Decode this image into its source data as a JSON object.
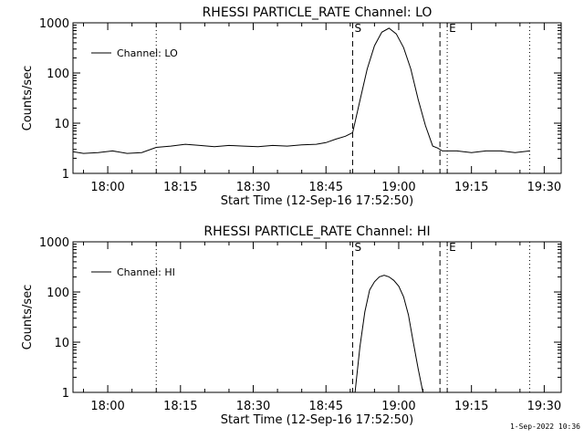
{
  "footer": {
    "timestamp": "1-Sep-2022 10:36"
  },
  "chart_data": [
    {
      "type": "line",
      "title": "RHESSI PARTICLE_RATE Channel: LO",
      "xlabel": "Start Time (12-Sep-16 17:52:50)",
      "ylabel": "Counts/sec",
      "yscale": "log",
      "ylim": [
        1,
        1000
      ],
      "xlim": [
        "17:52:50",
        "19:33:30"
      ],
      "xticks": [
        "18:00",
        "18:15",
        "18:30",
        "18:45",
        "19:00",
        "19:15",
        "19:30"
      ],
      "yticks": [
        "1",
        "10",
        "100",
        "1000"
      ],
      "legend": {
        "placement": "top-left",
        "entries": [
          "Channel: LO"
        ]
      },
      "markers": [
        {
          "label": "",
          "time": "18:10:00",
          "style": "dotted"
        },
        {
          "label": "S",
          "time": "18:50:30",
          "style": "dashed"
        },
        {
          "label": "",
          "time": "19:08:30",
          "style": "dashed"
        },
        {
          "label": "E",
          "time": "19:10:00",
          "style": "dotted"
        },
        {
          "label": "",
          "time": "19:27:00",
          "style": "dotted"
        }
      ],
      "series": [
        {
          "name": "Channel: LO",
          "x": [
            "17:52:50",
            "17:55:00",
            "17:58:00",
            "18:01:00",
            "18:04:00",
            "18:07:00",
            "18:10:00",
            "18:13:00",
            "18:16:00",
            "18:19:00",
            "18:22:00",
            "18:25:00",
            "18:28:00",
            "18:31:00",
            "18:34:00",
            "18:37:00",
            "18:40:00",
            "18:43:00",
            "18:45:00",
            "18:47:00",
            "18:49:00",
            "18:50:30",
            "18:52:00",
            "18:53:30",
            "18:55:00",
            "18:56:30",
            "18:58:00",
            "18:59:30",
            "19:01:00",
            "19:02:30",
            "19:04:00",
            "19:05:30",
            "19:07:00",
            "19:08:00",
            "19:09:00",
            "19:12:00",
            "19:15:00",
            "19:18:00",
            "19:21:00",
            "19:24:00",
            "19:27:00"
          ],
          "values": [
            2.7,
            2.5,
            2.6,
            2.8,
            2.5,
            2.6,
            3.3,
            3.5,
            3.8,
            3.6,
            3.4,
            3.6,
            3.5,
            3.4,
            3.6,
            3.5,
            3.7,
            3.8,
            4.1,
            4.8,
            5.5,
            6.5,
            28,
            120,
            350,
            650,
            780,
            600,
            320,
            120,
            30,
            9,
            3.5,
            3.2,
            2.8,
            2.8,
            2.6,
            2.8,
            2.8,
            2.6,
            2.8
          ]
        }
      ]
    },
    {
      "type": "line",
      "title": "RHESSI PARTICLE_RATE Channel: HI",
      "xlabel": "Start Time (12-Sep-16 17:52:50)",
      "ylabel": "Counts/sec",
      "yscale": "log",
      "ylim": [
        1,
        1000
      ],
      "xlim": [
        "17:52:50",
        "19:33:30"
      ],
      "xticks": [
        "18:00",
        "18:15",
        "18:30",
        "18:45",
        "19:00",
        "19:15",
        "19:30"
      ],
      "yticks": [
        "1",
        "10",
        "100",
        "1000"
      ],
      "legend": {
        "placement": "top-left",
        "entries": [
          "Channel: HI"
        ]
      },
      "markers": [
        {
          "label": "",
          "time": "18:10:00",
          "style": "dotted"
        },
        {
          "label": "S",
          "time": "18:50:30",
          "style": "dashed"
        },
        {
          "label": "",
          "time": "19:08:30",
          "style": "dashed"
        },
        {
          "label": "E",
          "time": "19:10:00",
          "style": "dotted"
        },
        {
          "label": "",
          "time": "19:27:00",
          "style": "dotted"
        }
      ],
      "series": [
        {
          "name": "Channel: HI",
          "x": [
            "18:51:00",
            "18:52:00",
            "18:53:00",
            "18:54:00",
            "18:55:00",
            "18:56:00",
            "18:57:00",
            "18:58:00",
            "18:59:00",
            "19:00:00",
            "19:01:00",
            "19:02:00",
            "19:03:00",
            "19:04:00",
            "19:05:00"
          ],
          "values": [
            1.0,
            8,
            40,
            110,
            160,
            200,
            215,
            200,
            170,
            130,
            80,
            35,
            10,
            3,
            1.0
          ]
        }
      ]
    }
  ]
}
